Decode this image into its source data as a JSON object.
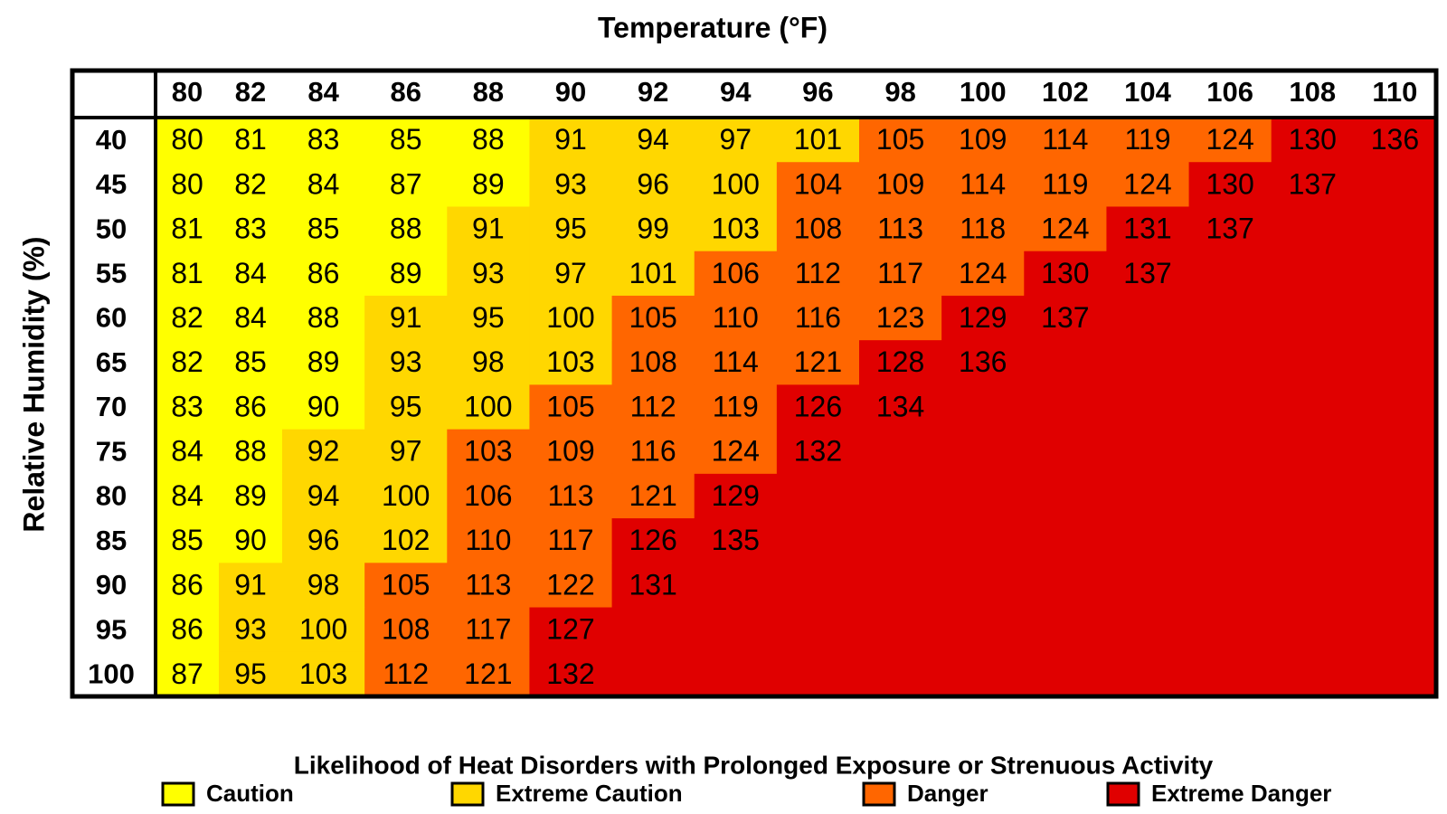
{
  "title": "Temperature (°F)",
  "y_axis_label": "Relative Humidity (%)",
  "temperatures": [
    80,
    82,
    84,
    86,
    88,
    90,
    92,
    94,
    96,
    98,
    100,
    102,
    104,
    106,
    108,
    110
  ],
  "rows": [
    {
      "humidity": 40,
      "values": [
        80,
        81,
        83,
        85,
        88,
        91,
        94,
        97,
        101,
        105,
        109,
        114,
        119,
        124,
        130,
        136
      ],
      "colors": [
        "#ffff00",
        "#ffff00",
        "#ffff00",
        "#ffff00",
        "#ffff00",
        "#ffd700",
        "#ffd700",
        "#ffd700",
        "#ffd700",
        "#ff6600",
        "#ff6600",
        "#ff6600",
        "#ff6600",
        "#ff6600",
        "#e00000",
        "#e00000"
      ]
    },
    {
      "humidity": 45,
      "values": [
        80,
        82,
        84,
        87,
        89,
        93,
        96,
        100,
        104,
        109,
        114,
        119,
        124,
        130,
        137,
        null
      ],
      "colors": [
        "#ffff00",
        "#ffff00",
        "#ffff00",
        "#ffff00",
        "#ffff00",
        "#ffd700",
        "#ffd700",
        "#ffd700",
        "#ff6600",
        "#ff6600",
        "#ff6600",
        "#ff6600",
        "#ff6600",
        "#e00000",
        "#e00000",
        "#e00000"
      ]
    },
    {
      "humidity": 50,
      "values": [
        81,
        83,
        85,
        88,
        91,
        95,
        99,
        103,
        108,
        113,
        118,
        124,
        131,
        137,
        null,
        null
      ],
      "colors": [
        "#ffff00",
        "#ffff00",
        "#ffff00",
        "#ffff00",
        "#ffd700",
        "#ffd700",
        "#ffd700",
        "#ffd700",
        "#ff6600",
        "#ff6600",
        "#ff6600",
        "#ff6600",
        "#e00000",
        "#e00000",
        "#e00000",
        "#e00000"
      ]
    },
    {
      "humidity": 55,
      "values": [
        81,
        84,
        86,
        89,
        93,
        97,
        101,
        106,
        112,
        117,
        124,
        130,
        137,
        null,
        null,
        null
      ],
      "colors": [
        "#ffff00",
        "#ffff00",
        "#ffff00",
        "#ffff00",
        "#ffd700",
        "#ffd700",
        "#ffd700",
        "#ff6600",
        "#ff6600",
        "#ff6600",
        "#ff6600",
        "#e00000",
        "#e00000",
        "#e00000",
        "#e00000",
        "#e00000"
      ]
    },
    {
      "humidity": 60,
      "values": [
        82,
        84,
        88,
        91,
        95,
        100,
        105,
        110,
        116,
        123,
        129,
        137,
        null,
        null,
        null,
        null
      ],
      "colors": [
        "#ffff00",
        "#ffff00",
        "#ffff00",
        "#ffd700",
        "#ffd700",
        "#ffd700",
        "#ff6600",
        "#ff6600",
        "#ff6600",
        "#ff6600",
        "#e00000",
        "#e00000",
        "#e00000",
        "#e00000",
        "#e00000",
        "#e00000"
      ]
    },
    {
      "humidity": 65,
      "values": [
        82,
        85,
        89,
        93,
        98,
        103,
        108,
        114,
        121,
        128,
        136,
        null,
        null,
        null,
        null,
        null
      ],
      "colors": [
        "#ffff00",
        "#ffff00",
        "#ffff00",
        "#ffd700",
        "#ffd700",
        "#ffd700",
        "#ff6600",
        "#ff6600",
        "#ff6600",
        "#e00000",
        "#e00000",
        "#e00000",
        "#e00000",
        "#e00000",
        "#e00000",
        "#e00000"
      ]
    },
    {
      "humidity": 70,
      "values": [
        83,
        86,
        90,
        95,
        100,
        105,
        112,
        119,
        126,
        134,
        null,
        null,
        null,
        null,
        null,
        null
      ],
      "colors": [
        "#ffff00",
        "#ffff00",
        "#ffff00",
        "#ffd700",
        "#ffd700",
        "#ff6600",
        "#ff6600",
        "#ff6600",
        "#e00000",
        "#e00000",
        "#e00000",
        "#e00000",
        "#e00000",
        "#e00000",
        "#e00000",
        "#e00000"
      ]
    },
    {
      "humidity": 75,
      "values": [
        84,
        88,
        92,
        97,
        103,
        109,
        116,
        124,
        132,
        null,
        null,
        null,
        null,
        null,
        null,
        null
      ],
      "colors": [
        "#ffff00",
        "#ffff00",
        "#ffd700",
        "#ffd700",
        "#ff6600",
        "#ff6600",
        "#ff6600",
        "#ff6600",
        "#e00000",
        "#e00000",
        "#e00000",
        "#e00000",
        "#e00000",
        "#e00000",
        "#e00000",
        "#e00000"
      ]
    },
    {
      "humidity": 80,
      "values": [
        84,
        89,
        94,
        100,
        106,
        113,
        121,
        129,
        null,
        null,
        null,
        null,
        null,
        null,
        null,
        null
      ],
      "colors": [
        "#ffff00",
        "#ffff00",
        "#ffd700",
        "#ffd700",
        "#ff6600",
        "#ff6600",
        "#ff6600",
        "#e00000",
        "#e00000",
        "#e00000",
        "#e00000",
        "#e00000",
        "#e00000",
        "#e00000",
        "#e00000",
        "#e00000"
      ]
    },
    {
      "humidity": 85,
      "values": [
        85,
        90,
        96,
        102,
        110,
        117,
        126,
        135,
        null,
        null,
        null,
        null,
        null,
        null,
        null,
        null
      ],
      "colors": [
        "#ffff00",
        "#ffff00",
        "#ffd700",
        "#ffd700",
        "#ff6600",
        "#ff6600",
        "#e00000",
        "#e00000",
        "#e00000",
        "#e00000",
        "#e00000",
        "#e00000",
        "#e00000",
        "#e00000",
        "#e00000",
        "#e00000"
      ]
    },
    {
      "humidity": 90,
      "values": [
        86,
        91,
        98,
        105,
        113,
        122,
        131,
        null,
        null,
        null,
        null,
        null,
        null,
        null,
        null,
        null
      ],
      "colors": [
        "#ffff00",
        "#ffd700",
        "#ffd700",
        "#ff6600",
        "#ff6600",
        "#ff6600",
        "#e00000",
        "#e00000",
        "#e00000",
        "#e00000",
        "#e00000",
        "#e00000",
        "#e00000",
        "#e00000",
        "#e00000",
        "#e00000"
      ]
    },
    {
      "humidity": 95,
      "values": [
        86,
        93,
        100,
        108,
        117,
        127,
        null,
        null,
        null,
        null,
        null,
        null,
        null,
        null,
        null,
        null
      ],
      "colors": [
        "#ffff00",
        "#ffd700",
        "#ffd700",
        "#ff6600",
        "#ff6600",
        "#e00000",
        "#e00000",
        "#e00000",
        "#e00000",
        "#e00000",
        "#e00000",
        "#e00000",
        "#e00000",
        "#e00000",
        "#e00000",
        "#e00000"
      ]
    },
    {
      "humidity": 100,
      "values": [
        87,
        95,
        103,
        112,
        121,
        132,
        null,
        null,
        null,
        null,
        null,
        null,
        null,
        null,
        null,
        null
      ],
      "colors": [
        "#ffff00",
        "#ffd700",
        "#ffd700",
        "#ff6600",
        "#ff6600",
        "#e00000",
        "#e00000",
        "#e00000",
        "#e00000",
        "#e00000",
        "#e00000",
        "#e00000",
        "#e00000",
        "#e00000",
        "#e00000",
        "#e00000"
      ]
    }
  ],
  "legend_title": "Likelihood of Heat Disorders with Prolonged Exposure or Strenuous Activity",
  "legend": [
    {
      "name": "Caution",
      "color": "#ffff00"
    },
    {
      "name": "Extreme Caution",
      "color": "#ffd700"
    },
    {
      "name": "Danger",
      "color": "#ff6600"
    },
    {
      "name": "Extreme Danger",
      "color": "#e00000"
    }
  ]
}
